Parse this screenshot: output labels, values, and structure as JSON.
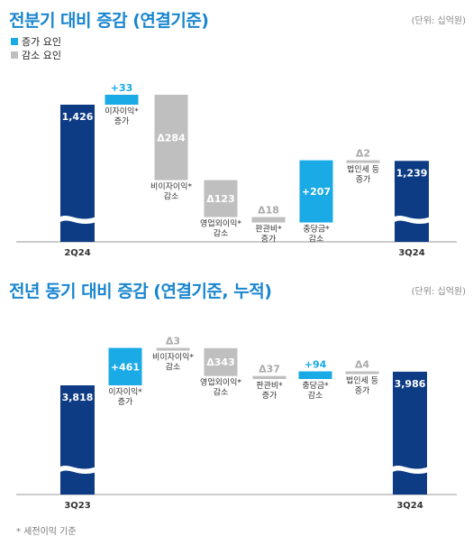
{
  "legend": {
    "increase": {
      "label": "증가 요인",
      "color": "#1aaae6"
    },
    "decrease": {
      "label": "감소 요인",
      "color": "#bfbfbf"
    }
  },
  "colors": {
    "total": "#0d3b84",
    "increase": "#1aaae6",
    "decrease": "#bfbfbf",
    "increase_label": "#1aaae6",
    "decrease_label": "#aaaaaa"
  },
  "footnote": "* 세전이익 기준",
  "chart_data": [
    {
      "type": "waterfall",
      "title": "전분기 대비 증감 (연결기준)",
      "unit": "(단위: 십억원)",
      "steps": [
        {
          "kind": "total",
          "category": "2Q24",
          "value": 1426,
          "label": "1,426"
        },
        {
          "kind": "increase",
          "value": 33,
          "label": "+33",
          "desc": [
            "이자이익*",
            "증가"
          ]
        },
        {
          "kind": "decrease",
          "value": -284,
          "label": "Δ284",
          "desc": [
            "비이자이익*",
            "감소"
          ]
        },
        {
          "kind": "decrease",
          "value": -123,
          "label": "Δ123",
          "desc": [
            "영업외이익*",
            "감소"
          ]
        },
        {
          "kind": "decrease",
          "value": -18,
          "label": "Δ18",
          "desc": [
            "판관비*",
            "증가"
          ]
        },
        {
          "kind": "increase",
          "value": 207,
          "label": "+207",
          "desc": [
            "충당금*",
            "감소"
          ]
        },
        {
          "kind": "decrease",
          "value": -2,
          "label": "Δ2",
          "desc": [
            "법인세 등",
            "증가"
          ]
        },
        {
          "kind": "total",
          "category": "3Q24",
          "value": 1239,
          "label": "1,239"
        }
      ]
    },
    {
      "type": "waterfall",
      "title": "전년 동기 대비 증감 (연결기준, 누적)",
      "unit": "(단위: 십억원)",
      "steps": [
        {
          "kind": "total",
          "category": "3Q23",
          "value": 3818,
          "label": "3,818"
        },
        {
          "kind": "increase",
          "value": 461,
          "label": "+461",
          "desc": [
            "이자이익*",
            "증가"
          ]
        },
        {
          "kind": "decrease",
          "value": -3,
          "label": "Δ3",
          "desc": [
            "비이자이익*",
            "감소"
          ]
        },
        {
          "kind": "decrease",
          "value": -343,
          "label": "Δ343",
          "desc": [
            "영업외이익*",
            "감소"
          ]
        },
        {
          "kind": "decrease",
          "value": -37,
          "label": "Δ37",
          "desc": [
            "판관비*",
            "증가"
          ]
        },
        {
          "kind": "increase",
          "value": 94,
          "label": "+94",
          "desc": [
            "충당금*",
            "감소"
          ]
        },
        {
          "kind": "decrease",
          "value": -4,
          "label": "Δ4",
          "desc": [
            "법인세 등",
            "증가"
          ]
        },
        {
          "kind": "total",
          "category": "3Q24",
          "value": 3986,
          "label": "3,986"
        }
      ]
    }
  ]
}
